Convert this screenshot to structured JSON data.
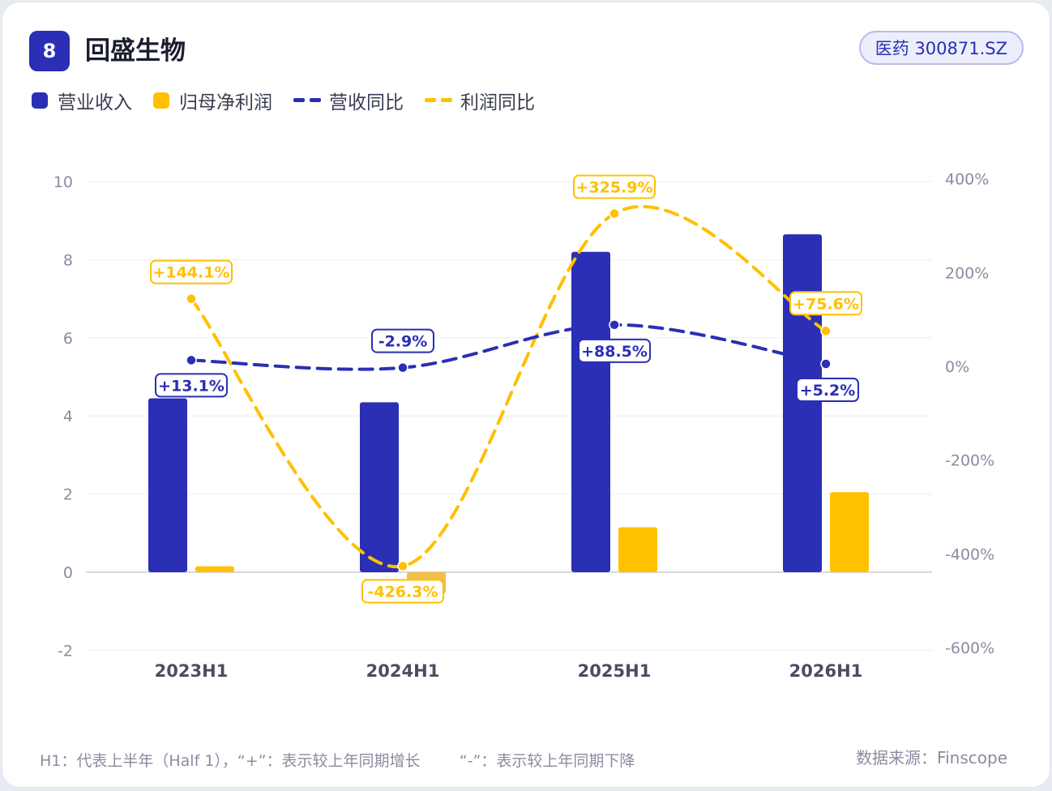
{
  "header": {
    "rank": "8",
    "title": "回盛生物",
    "ticker": "医药 300871.SZ"
  },
  "footer": {
    "note": "H1：代表上半年（Half 1），“+”：表示较上年同期增长        “-”：表示较上年同期下降",
    "source": "数据来源：Finscope"
  },
  "colors": {
    "revenue": "#2a2fb5",
    "profit": "#ffc000",
    "profit_negative": "#f0c04a"
  },
  "chart_data": {
    "type": "bar",
    "categories": [
      "2023H1",
      "2024H1",
      "2025H1",
      "2026H1"
    ],
    "series": [
      {
        "name": "营业收入",
        "kind": "bar",
        "axis": "left",
        "values": [
          4.45,
          4.35,
          8.2,
          8.65
        ]
      },
      {
        "name": "归母净利润",
        "kind": "bar",
        "axis": "left",
        "values": [
          0.15,
          -0.55,
          1.15,
          2.05
        ]
      },
      {
        "name": "营收同比",
        "kind": "line",
        "axis": "right",
        "style": "dashed",
        "values": [
          13.1,
          -2.9,
          88.5,
          5.2
        ],
        "labels": [
          "+13.1%",
          "-2.9%",
          "+88.5%",
          "+5.2%"
        ]
      },
      {
        "name": "利润同比",
        "kind": "line",
        "axis": "right",
        "style": "dashed",
        "values": [
          144.1,
          -426.3,
          325.9,
          75.6
        ],
        "labels": [
          "+144.1%",
          "-426.3%",
          "+325.9%",
          "+75.6%"
        ]
      }
    ],
    "y_left": {
      "min": -2,
      "max": 10,
      "ticks": [
        "10",
        "8",
        "6",
        "4",
        "2",
        "0",
        "-2"
      ]
    },
    "y_right": {
      "min": -600,
      "max": 400,
      "ticks": [
        "400%",
        "200%",
        "0%",
        "-200%",
        "-400%",
        "-600%"
      ]
    },
    "legend_position": "top-left",
    "grid": true
  }
}
